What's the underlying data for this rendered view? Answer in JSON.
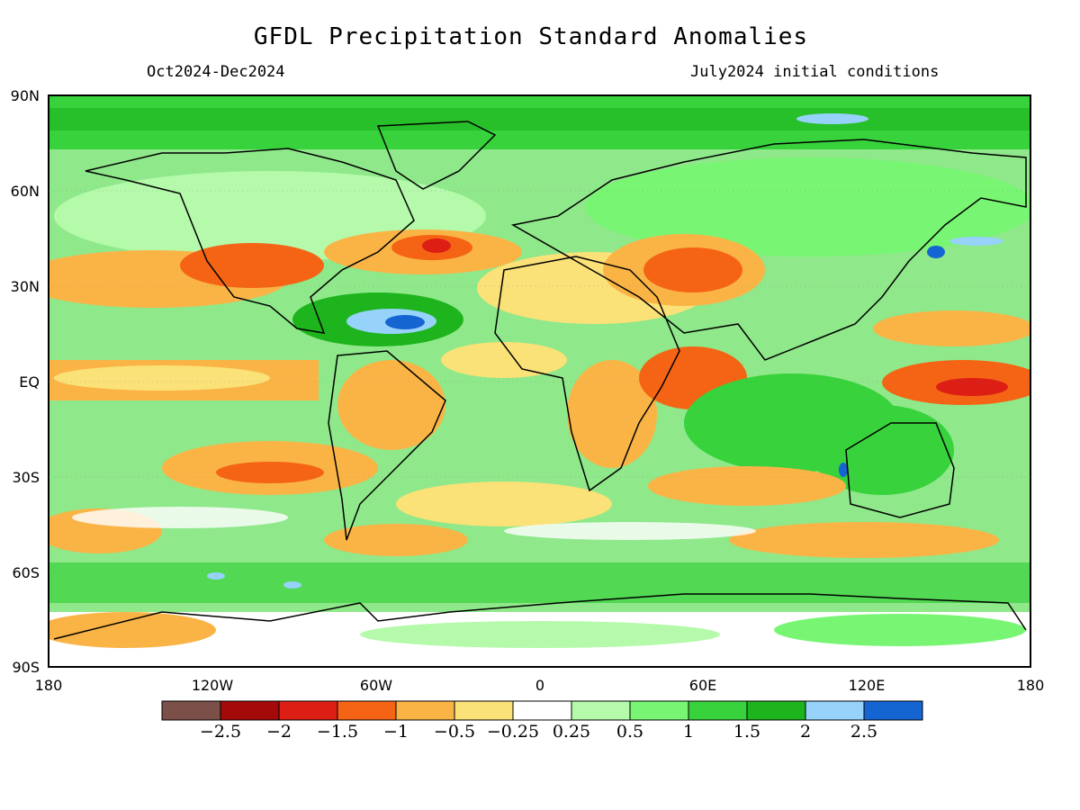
{
  "header": {
    "title": "GFDL Precipitation Standard Anomalies",
    "period": "Oct2024-Dec2024",
    "initial_conditions": "July2024 initial conditions"
  },
  "axes": {
    "lat_labels": [
      "90N",
      "60N",
      "30N",
      "EQ",
      "30S",
      "60S",
      "90S"
    ],
    "lon_labels": [
      "180",
      "120W",
      "60W",
      "0",
      "60E",
      "120E",
      "180"
    ]
  },
  "colorbar": {
    "colors": [
      "#7a5048",
      "#a50a0a",
      "#dc1e14",
      "#f56414",
      "#fab446",
      "#fae178",
      "#ffffff",
      "#b4faaa",
      "#78f573",
      "#37d23c",
      "#1eb41e",
      "#96d2fa",
      "#1464d2"
    ],
    "labels": [
      "-2.5",
      "-2",
      "-1.5",
      "-1",
      "-0.5",
      "-0.25",
      "0.25",
      "0.5",
      "1",
      "1.5",
      "2",
      "2.5"
    ]
  },
  "legend_colors": {
    "ocean_base": "#cfedc6",
    "land_outline": "#000000"
  }
}
